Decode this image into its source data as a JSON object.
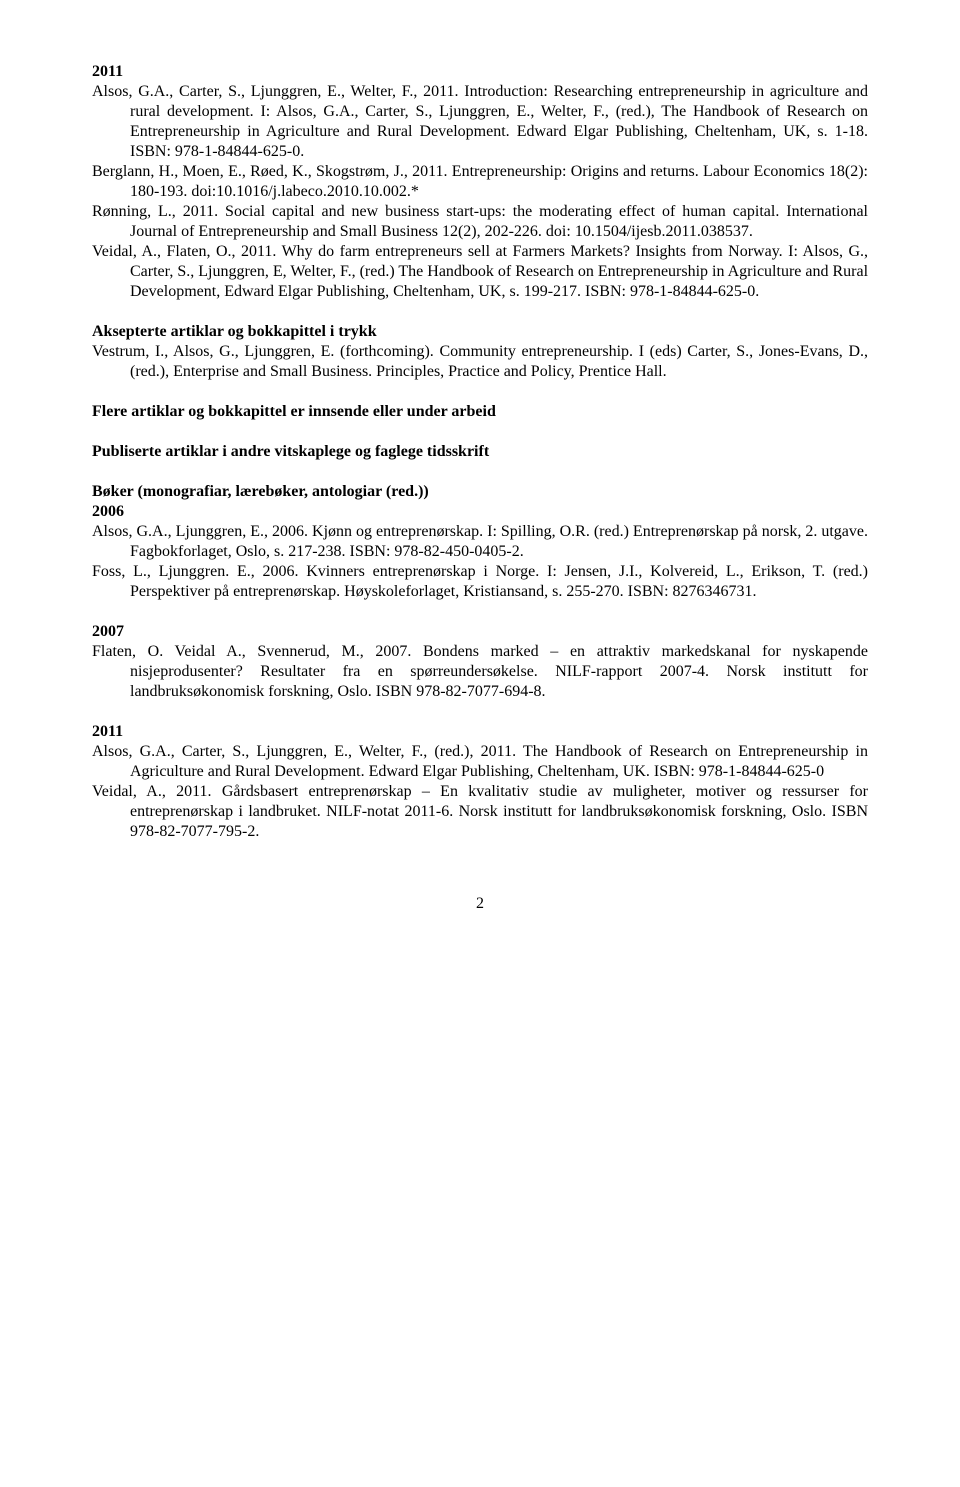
{
  "s1": {
    "year": "2011",
    "e1": "Alsos, G.A., Carter, S., Ljunggren, E., Welter, F., 2011. Introduction: Researching entrepreneurship in agriculture and rural development. I: Alsos, G.A., Carter, S., Ljunggren, E., Welter, F., (red.), The Handbook of Research on Entrepreneurship in Agriculture and Rural Development. Edward Elgar Publishing, Cheltenham, UK, s. 1-18. ISBN: 978-1-84844-625-0.",
    "e2": "Berglann, H., Moen, E., Røed, K., Skogstrøm, J., 2011. Entrepreneurship: Origins and returns. Labour Economics 18(2): 180-193. doi:10.1016/j.labeco.2010.10.002.*",
    "e3": "Rønning, L., 2011. Social capital and new business start-ups: the moderating effect of human capital. International Journal of Entrepreneurship and Small Business 12(2), 202-226. doi: 10.1504/ijesb.2011.038537.",
    "e4": "Veidal, A., Flaten, O., 2011. Why do farm entrepreneurs sell at Farmers Markets? Insights from Norway. I: Alsos, G., Carter, S., Ljunggren, E, Welter, F., (red.) The Handbook of Research on Entrepreneurship in Agriculture and Rural Development, Edward Elgar Publishing, Cheltenham, UK, s. 199-217. ISBN: 978-1-84844-625-0."
  },
  "s2": {
    "heading": "Aksepterte artiklar og bokkapittel i trykk",
    "e1": "Vestrum, I., Alsos, G., Ljunggren, E. (forthcoming). Community entrepreneurship. I (eds) Carter, S., Jones-Evans, D., (red.), Enterprise and Small Business. Principles, Practice and Policy, Prentice Hall."
  },
  "s3": {
    "heading": "Flere artiklar og bokkapittel er innsende eller under arbeid"
  },
  "s4": {
    "heading": "Publiserte artiklar i andre vitskaplege og faglege tidsskrift"
  },
  "s5": {
    "heading": "Bøker (monografiar, lærebøker, antologiar (red.))",
    "year1": "2006",
    "e1": "Alsos, G.A., Ljunggren, E., 2006. Kjønn og entreprenørskap. I: Spilling, O.R. (red.) Entreprenørskap på norsk, 2. utgave. Fagbokforlaget, Oslo, s. 217-238. ISBN: 978-82-450-0405-2.",
    "e2": "Foss, L., Ljunggren. E., 2006. Kvinners entreprenørskap i Norge. I: Jensen, J.I., Kolvereid, L., Erikson, T. (red.) Perspektiver på entreprenørskap. Høyskoleforlaget, Kristiansand, s. 255-270. ISBN: 8276346731.",
    "year2": "2007",
    "e3": "Flaten, O. Veidal A., Svennerud, M., 2007. Bondens marked – en attraktiv markedskanal for nyskapende nisjeprodusenter? Resultater fra en spørreundersøkelse. NILF-rapport 2007-4. Norsk institutt for landbruksøkonomisk forskning, Oslo. ISBN 978-82-7077-694-8.",
    "year3": "2011",
    "e4": "Alsos, G.A., Carter, S., Ljunggren, E., Welter, F., (red.), 2011. The Handbook of Research on Entrepreneurship in Agriculture and Rural Development. Edward Elgar Publishing, Cheltenham, UK. ISBN: 978-1-84844-625-0",
    "e5": "Veidal, A., 2011. Gårdsbasert entreprenørskap – En kvalitativ studie av muligheter, motiver og ressurser for entreprenørskap i landbruket. NILF-notat 2011-6. Norsk institutt for landbruksøkonomisk forskning, Oslo. ISBN 978-82-7077-795-2."
  },
  "pageNumber": "2"
}
